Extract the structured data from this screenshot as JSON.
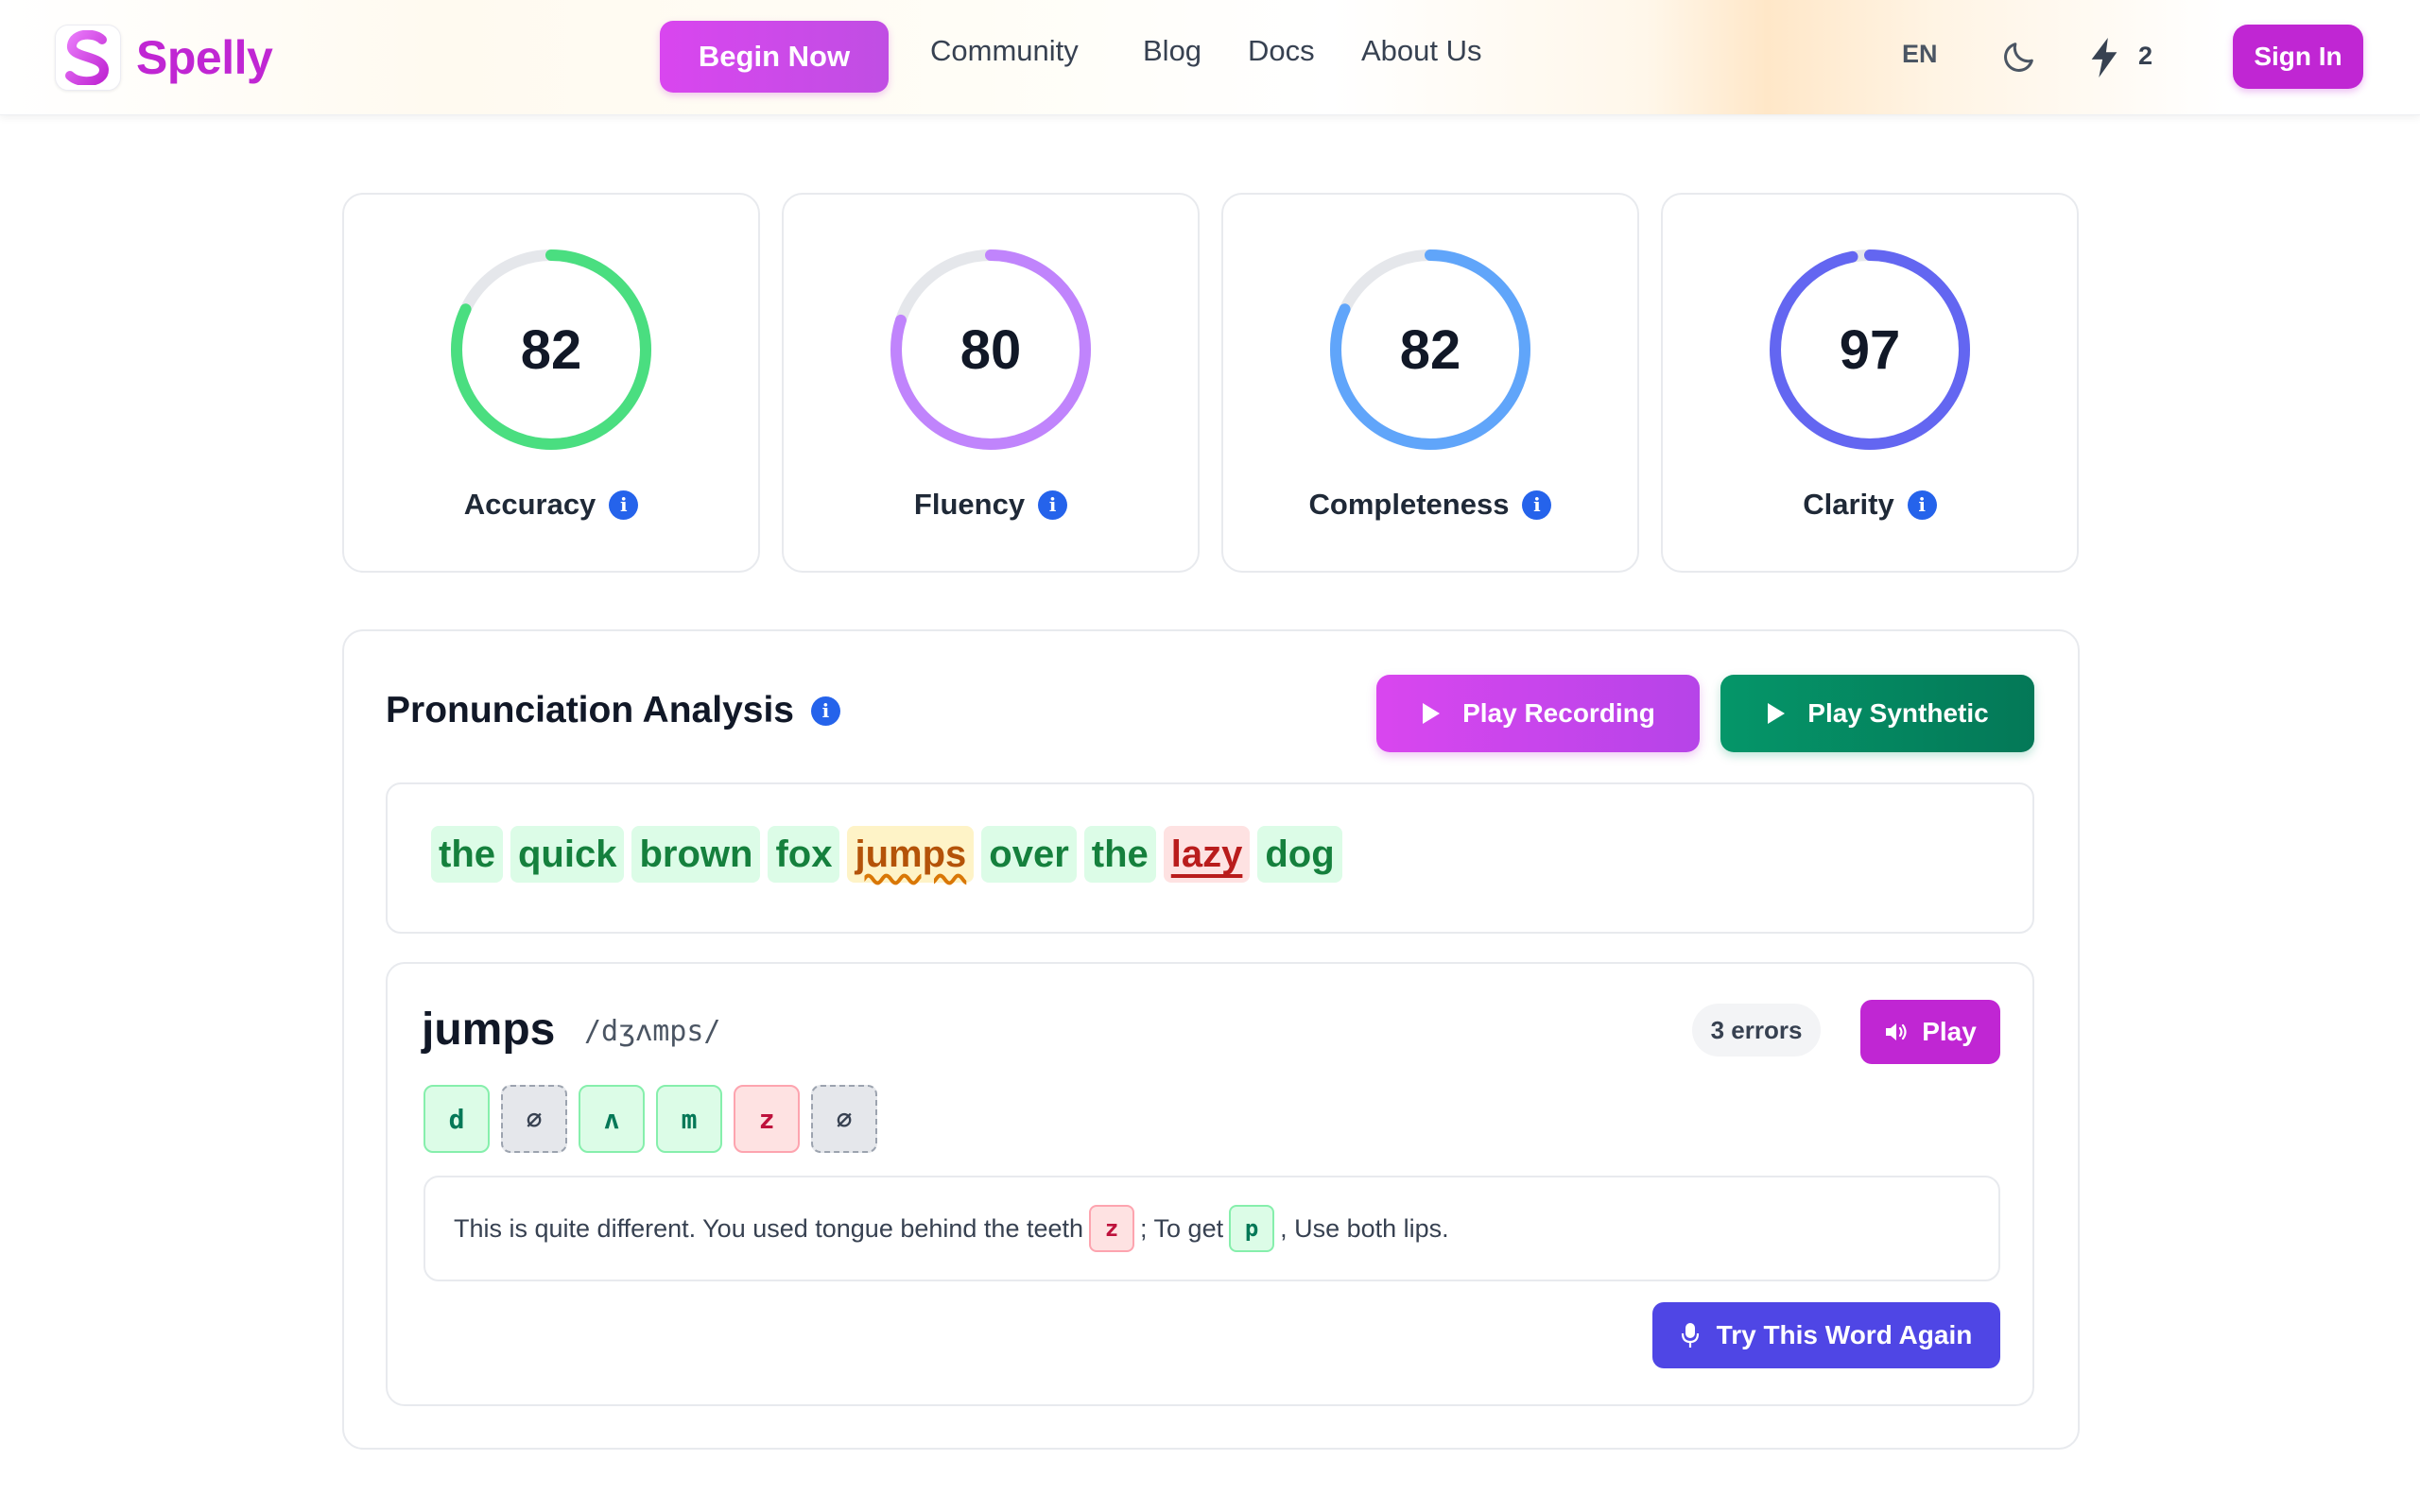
{
  "header": {
    "brand": "Spelly",
    "begin_label": "Begin Now",
    "nav": [
      "Community",
      "Blog",
      "Docs",
      "About Us"
    ],
    "language": "EN",
    "energy_count": "2",
    "signin_label": "Sign In",
    "icons": [
      "logo-icon",
      "moon-icon",
      "bolt-icon"
    ]
  },
  "scores": [
    {
      "label": "Accuracy",
      "value": "82",
      "percent": 82,
      "color": "#4ade80"
    },
    {
      "label": "Fluency",
      "value": "80",
      "percent": 80,
      "color": "#c084fc"
    },
    {
      "label": "Completeness",
      "value": "82",
      "percent": 82,
      "color": "#60a5fa"
    },
    {
      "label": "Clarity",
      "value": "97",
      "percent": 97,
      "color": "#6366f1"
    }
  ],
  "analysis": {
    "title": "Pronunciation Analysis",
    "play_recording_label": "Play Recording",
    "play_synthetic_label": "Play Synthetic",
    "words": [
      {
        "text": "the",
        "status": "ok"
      },
      {
        "text": "quick",
        "status": "ok"
      },
      {
        "text": "brown",
        "status": "ok"
      },
      {
        "text": "fox",
        "status": "ok"
      },
      {
        "text": "jumps",
        "status": "warn"
      },
      {
        "text": "over",
        "status": "ok"
      },
      {
        "text": "the",
        "status": "ok"
      },
      {
        "text": "lazy",
        "status": "bad"
      },
      {
        "text": "dog",
        "status": "ok"
      }
    ]
  },
  "detail": {
    "word": "jumps",
    "ipa": "/dʒʌmps/",
    "errors_label": "3 errors",
    "play_label": "Play",
    "phonemes": [
      {
        "symbol": "d",
        "status": "ok"
      },
      {
        "symbol": "∅",
        "status": "miss"
      },
      {
        "symbol": "ʌ",
        "status": "ok"
      },
      {
        "symbol": "m",
        "status": "ok"
      },
      {
        "symbol": "z",
        "status": "bad"
      },
      {
        "symbol": "∅",
        "status": "miss"
      }
    ],
    "feedback": {
      "part1": "This is quite different. You used tongue behind the teeth",
      "chip1": "z",
      "part2": "; To get",
      "chip2": "p",
      "part3": ", Use both lips."
    },
    "try_again_label": "Try This Word Again"
  },
  "colors": {
    "brand": "#c026d3",
    "indigo": "#4f46e5",
    "green": "#059669",
    "info_blue": "#2563eb"
  }
}
